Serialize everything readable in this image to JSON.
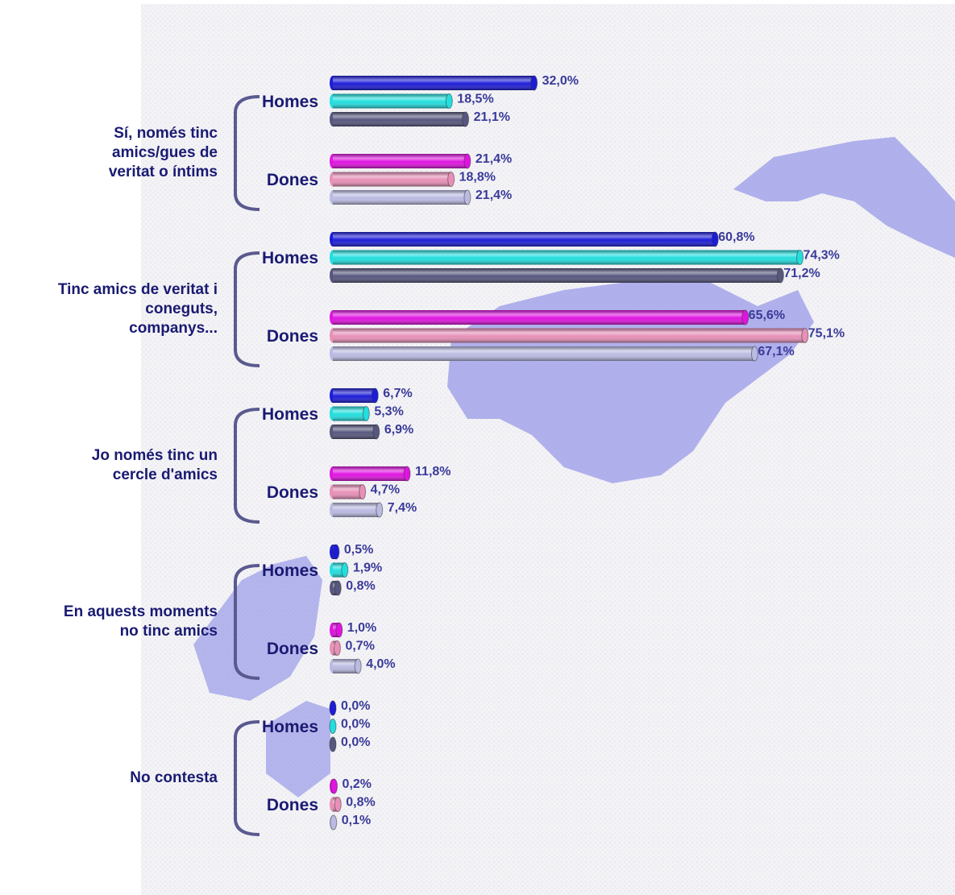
{
  "chart_data": {
    "type": "bar",
    "colors": {
      "Homes": [
        "#1c1cd8",
        "#22dede",
        "#56567e"
      ],
      "Dones": [
        "#e014e0",
        "#e890b8",
        "#babae2"
      ]
    },
    "groups": [
      {
        "label_lines": [
          "Sí, només tinc",
          "amics/gues de",
          "veritat o íntims"
        ],
        "subgroups": [
          {
            "label": "Homes",
            "values": [
              32.0,
              18.5,
              21.1
            ],
            "value_labels": [
              "32,0%",
              "18,5%",
              "21,1%"
            ]
          },
          {
            "label": "Dones",
            "values": [
              21.4,
              18.8,
              21.4
            ],
            "value_labels": [
              "21,4%",
              "18,8%",
              "21,4%"
            ]
          }
        ]
      },
      {
        "label_lines": [
          "Tinc amics de veritat i",
          "coneguts,",
          "companys..."
        ],
        "subgroups": [
          {
            "label": "Homes",
            "values": [
              60.8,
              74.3,
              71.2
            ],
            "value_labels": [
              "60,8%",
              "74,3%",
              "71,2%"
            ]
          },
          {
            "label": "Dones",
            "values": [
              65.6,
              75.1,
              67.1
            ],
            "value_labels": [
              "65,6%",
              "75,1%",
              "67,1%"
            ]
          }
        ]
      },
      {
        "label_lines": [
          "Jo només tinc un",
          "cercle d'amics"
        ],
        "subgroups": [
          {
            "label": "Homes",
            "values": [
              6.7,
              5.3,
              6.9
            ],
            "value_labels": [
              "6,7%",
              "5,3%",
              "6,9%"
            ]
          },
          {
            "label": "Dones",
            "values": [
              11.8,
              4.7,
              7.4
            ],
            "value_labels": [
              "11,8%",
              "4,7%",
              "7,4%"
            ]
          }
        ]
      },
      {
        "label_lines": [
          "En aquests moments",
          "no  tinc amics"
        ],
        "subgroups": [
          {
            "label": "Homes",
            "values": [
              0.5,
              1.9,
              0.8
            ],
            "value_labels": [
              "0,5%",
              "1,9%",
              "0,8%"
            ]
          },
          {
            "label": "Dones",
            "values": [
              1.0,
              0.7,
              4.0
            ],
            "value_labels": [
              "1,0%",
              "0,7%",
              "4,0%"
            ]
          }
        ]
      },
      {
        "label_lines": [
          "No contesta"
        ],
        "subgroups": [
          {
            "label": "Homes",
            "values": [
              0.0,
              0.0,
              0.0
            ],
            "value_labels": [
              "0,0%",
              "0,0%",
              "0,0%"
            ]
          },
          {
            "label": "Dones",
            "values": [
              0.2,
              0.8,
              0.1
            ],
            "value_labels": [
              "0,2%",
              "0,8%",
              "0,1%"
            ]
          }
        ]
      }
    ]
  }
}
